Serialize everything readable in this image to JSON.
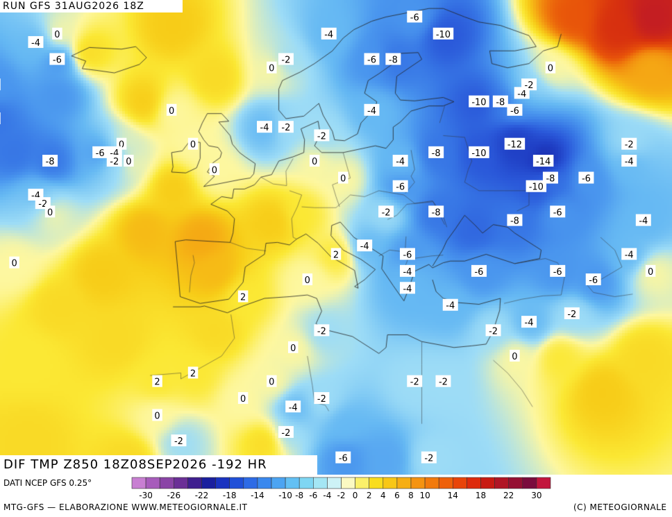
{
  "header": {
    "run_label": "RUN GFS 31AUG2026 18Z"
  },
  "map": {
    "title": "DIF TMP Z850 18Z08SEP2026 -192 HR",
    "labels": [
      {
        "text": "0",
        "lon": -26,
        "lat": 68
      },
      {
        "text": "-4",
        "lon": -29,
        "lat": 67
      },
      {
        "text": "-6",
        "lon": -26,
        "lat": 65
      },
      {
        "text": "-6",
        "lon": -35,
        "lat": 62
      },
      {
        "text": "-8",
        "lon": -35,
        "lat": 58
      },
      {
        "text": "0",
        "lon": -10,
        "lat": 59
      },
      {
        "text": "0",
        "lon": -17,
        "lat": 55
      },
      {
        "text": "-6",
        "lon": -20,
        "lat": 54
      },
      {
        "text": "-4",
        "lon": -18,
        "lat": 54
      },
      {
        "text": "-2",
        "lon": -18,
        "lat": 53
      },
      {
        "text": "0",
        "lon": -16,
        "lat": 53
      },
      {
        "text": "-8",
        "lon": -27,
        "lat": 53
      },
      {
        "text": "-4",
        "lon": -29,
        "lat": 49
      },
      {
        "text": "-2",
        "lon": -28,
        "lat": 48
      },
      {
        "text": "0",
        "lon": -27,
        "lat": 47
      },
      {
        "text": "0",
        "lon": -32,
        "lat": 41
      },
      {
        "text": "0",
        "lon": -7,
        "lat": 55
      },
      {
        "text": "0",
        "lon": -4,
        "lat": 52
      },
      {
        "text": "0",
        "lon": 4,
        "lat": 64
      },
      {
        "text": "-2",
        "lon": 6,
        "lat": 65
      },
      {
        "text": "-4",
        "lon": 12,
        "lat": 68
      },
      {
        "text": "-6",
        "lon": 24,
        "lat": 70
      },
      {
        "text": "-6",
        "lon": 18,
        "lat": 65
      },
      {
        "text": "-8",
        "lon": 21,
        "lat": 65
      },
      {
        "text": "-10",
        "lon": 28,
        "lat": 68
      },
      {
        "text": "-10",
        "lon": 33,
        "lat": 60
      },
      {
        "text": "-8",
        "lon": 36,
        "lat": 60
      },
      {
        "text": "-4",
        "lon": 39,
        "lat": 61
      },
      {
        "text": "-2",
        "lon": 40,
        "lat": 62
      },
      {
        "text": "0",
        "lon": 43,
        "lat": 64
      },
      {
        "text": "-6",
        "lon": 38,
        "lat": 59
      },
      {
        "text": "-4",
        "lon": 18,
        "lat": 59
      },
      {
        "text": "-4",
        "lon": 3,
        "lat": 57
      },
      {
        "text": "-2",
        "lon": 6,
        "lat": 57
      },
      {
        "text": "-2",
        "lon": 11,
        "lat": 56
      },
      {
        "text": "0",
        "lon": 10,
        "lat": 53
      },
      {
        "text": "-12",
        "lon": 38,
        "lat": 55
      },
      {
        "text": "-14",
        "lon": 42,
        "lat": 53
      },
      {
        "text": "-10",
        "lon": 33,
        "lat": 54
      },
      {
        "text": "-8",
        "lon": 27,
        "lat": 54
      },
      {
        "text": "-4",
        "lon": 22,
        "lat": 53
      },
      {
        "text": "-6",
        "lon": 22,
        "lat": 50
      },
      {
        "text": "-2",
        "lon": 20,
        "lat": 47
      },
      {
        "text": "0",
        "lon": 14,
        "lat": 51
      },
      {
        "text": "-8",
        "lon": 43,
        "lat": 51
      },
      {
        "text": "-10",
        "lon": 41,
        "lat": 50
      },
      {
        "text": "-6",
        "lon": 48,
        "lat": 51
      },
      {
        "text": "-2",
        "lon": 54,
        "lat": 55
      },
      {
        "text": "-4",
        "lon": 54,
        "lat": 53
      },
      {
        "text": "-8",
        "lon": 27,
        "lat": 47
      },
      {
        "text": "-8",
        "lon": 38,
        "lat": 46
      },
      {
        "text": "-6",
        "lon": 44,
        "lat": 47
      },
      {
        "text": "-4",
        "lon": 56,
        "lat": 46
      },
      {
        "text": "-4",
        "lon": 17,
        "lat": 43
      },
      {
        "text": "-6",
        "lon": 23,
        "lat": 42
      },
      {
        "text": "-4",
        "lon": 23,
        "lat": 40
      },
      {
        "text": "-4",
        "lon": 23,
        "lat": 38
      },
      {
        "text": "-4",
        "lon": 29,
        "lat": 36
      },
      {
        "text": "-6",
        "lon": 33,
        "lat": 40
      },
      {
        "text": "-6",
        "lon": 44,
        "lat": 40
      },
      {
        "text": "-6",
        "lon": 49,
        "lat": 39
      },
      {
        "text": "-4",
        "lon": 54,
        "lat": 42
      },
      {
        "text": "0",
        "lon": 57,
        "lat": 40
      },
      {
        "text": "-2",
        "lon": 46,
        "lat": 35
      },
      {
        "text": "-4",
        "lon": 40,
        "lat": 34
      },
      {
        "text": "-2",
        "lon": 35,
        "lat": 33
      },
      {
        "text": "0",
        "lon": 38,
        "lat": 30
      },
      {
        "text": "-2",
        "lon": 24,
        "lat": 27
      },
      {
        "text": "-2",
        "lon": 28,
        "lat": 27
      },
      {
        "text": "2",
        "lon": 13,
        "lat": 42
      },
      {
        "text": "0",
        "lon": 9,
        "lat": 39
      },
      {
        "text": "2",
        "lon": 0,
        "lat": 37
      },
      {
        "text": "-2",
        "lon": 11,
        "lat": 33
      },
      {
        "text": "0",
        "lon": 7,
        "lat": 31
      },
      {
        "text": "2",
        "lon": -7,
        "lat": 28
      },
      {
        "text": "2",
        "lon": -12,
        "lat": 27
      },
      {
        "text": "0",
        "lon": 4,
        "lat": 27
      },
      {
        "text": "0",
        "lon": 0,
        "lat": 25
      },
      {
        "text": "0",
        "lon": -12,
        "lat": 23
      },
      {
        "text": "-2",
        "lon": 11,
        "lat": 25
      },
      {
        "text": "-4",
        "lon": 7,
        "lat": 24
      },
      {
        "text": "-2",
        "lon": 6,
        "lat": 21
      },
      {
        "text": "-2",
        "lon": -9,
        "lat": 20
      },
      {
        "text": "-6",
        "lon": 14,
        "lat": 18
      },
      {
        "text": "-2",
        "lon": 26,
        "lat": 18
      }
    ]
  },
  "footer": {
    "source": "DATI NCEP GFS 0.25°",
    "credit": "MTG-GFS — ELABORAZIONE WWW.METEOGIORNALE.IT",
    "copyright": "(C) METEOGIORNALE"
  },
  "legend": {
    "ticks": [
      "-30",
      "-26",
      "-22",
      "-18",
      "-14",
      "-10",
      "-8",
      "-6",
      "-4",
      "-2",
      "0",
      "2",
      "4",
      "6",
      "8",
      "10",
      "14",
      "18",
      "22",
      "30"
    ],
    "colors": [
      "#c87fd2",
      "#a75cbb",
      "#8a44a6",
      "#6b2f96",
      "#3f1f8f",
      "#1a1f9e",
      "#1a33c0",
      "#2050d8",
      "#2d6be6",
      "#3a88ee",
      "#4ca4f2",
      "#63c0f4",
      "#7fd6f3",
      "#a4e6f4",
      "#cdf2f6",
      "#fbf9c2",
      "#fbf06a",
      "#f9dd1d",
      "#f8c716",
      "#f6ae14",
      "#f59310",
      "#f27a0c",
      "#ee600a",
      "#e84409",
      "#dd2a0c",
      "#c81a12",
      "#b01525",
      "#951033",
      "#7a0c3d",
      "#c2163d"
    ],
    "gradient_stops": [
      {
        "value": -14,
        "color": "#1a2aa8"
      },
      {
        "value": -12,
        "color": "#1f3ec4"
      },
      {
        "value": -10,
        "color": "#2a58d9"
      },
      {
        "value": -8,
        "color": "#3776e5"
      },
      {
        "value": -6,
        "color": "#4a96ee"
      },
      {
        "value": -4,
        "color": "#66b9f3"
      },
      {
        "value": -2,
        "color": "#9ddcf6"
      },
      {
        "value": 0,
        "color": "#fdf7a0"
      },
      {
        "value": 2,
        "color": "#fbe834"
      },
      {
        "value": 4,
        "color": "#f7cc18"
      },
      {
        "value": 6,
        "color": "#f5a814"
      },
      {
        "value": 8,
        "color": "#f07f0d"
      },
      {
        "value": 10,
        "color": "#e8540a"
      },
      {
        "value": 14,
        "color": "#d7300f"
      },
      {
        "value": 18,
        "color": "#c31d23"
      }
    ]
  }
}
